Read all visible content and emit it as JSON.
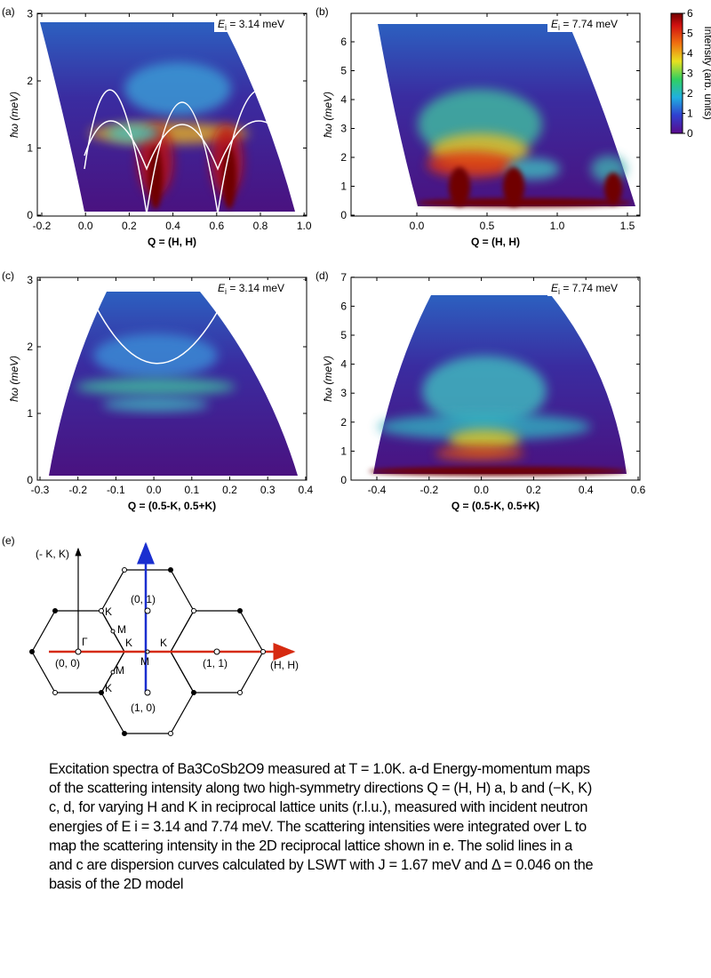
{
  "panels": [
    {
      "label": "(a)",
      "ei_symbol": "E",
      "ei_sub": "i",
      "ei_value": " = 3.14 meV",
      "ylabel": "ħω (meV)",
      "xlabel": "Q = (H, H)",
      "xticks": [
        "-0.2",
        "0.0",
        "0.2",
        "0.4",
        "0.6",
        "0.8",
        "1.0"
      ],
      "yticks": [
        "0",
        "1",
        "2",
        "3"
      ]
    },
    {
      "label": "(b)",
      "ei_symbol": "E",
      "ei_sub": "i",
      "ei_value": " = 7.74 meV",
      "ylabel": "ħω (meV)",
      "xlabel": "Q = (H, H)",
      "xticks": [
        "0.0",
        "0.5",
        "1.0",
        "1.5"
      ],
      "yticks": [
        "0",
        "1",
        "2",
        "3",
        "4",
        "5",
        "6"
      ]
    },
    {
      "label": "(c)",
      "ei_symbol": "E",
      "ei_sub": "i",
      "ei_value": " = 3.14 meV",
      "ylabel": "ħω (meV)",
      "xlabel": "Q = (0.5-K, 0.5+K)",
      "xticks": [
        "-0.3",
        "-0.2",
        "-0.1",
        "0.0",
        "0.1",
        "0.2",
        "0.3",
        "0.4"
      ],
      "yticks": [
        "0",
        "1",
        "2",
        "3"
      ]
    },
    {
      "label": "(d)",
      "ei_symbol": "E",
      "ei_sub": "i",
      "ei_value": " = 7.74 meV",
      "ylabel": "ħω (meV)",
      "xlabel": "Q = (0.5-K, 0.5+K)",
      "xticks": [
        "-0.4",
        "-0.2",
        "0.0",
        "0.2",
        "0.4",
        "0.6"
      ],
      "yticks": [
        "0",
        "1",
        "2",
        "3",
        "4",
        "5",
        "6",
        "7"
      ]
    }
  ],
  "colorbar": {
    "title": "Intensity (arb. units)",
    "ticks": [
      "0",
      "1",
      "2",
      "3",
      "4",
      "5",
      "6"
    ]
  },
  "lattice": {
    "label": "(e)",
    "axis_k": "(- K, K)",
    "axis_h": "(H, H)",
    "gamma": "Γ",
    "origin": "(0, 0)",
    "p01": "(0, 1)",
    "p11": "(1, 1)",
    "p10": "(1, 0)",
    "k_labels": [
      "K",
      "K",
      "K",
      "K"
    ],
    "m_labels": [
      "M",
      "M",
      "M"
    ]
  },
  "caption": [
    "Excitation spectra of Ba3CoSb2O9 measured at T = 1.0K. a-d Energy-momentum maps",
    "of the scattering intensity along two high-symmetry directions Q = (H, H) a, b and (−K, K)",
    "c, d, for varying H and K in reciprocal lattice units (r.l.u.), measured with incident neutron",
    "energies of E i = 3.14 and 7.74 meV. The scattering intensities were integrated over L to",
    "map the scattering intensity in the 2D reciprocal lattice shown in e. The solid lines in a",
    "and c are dispersion curves calculated by LSWT with J = 1.67 meV and Δ = 0.046 on the",
    "basis of the 2D model"
  ]
}
